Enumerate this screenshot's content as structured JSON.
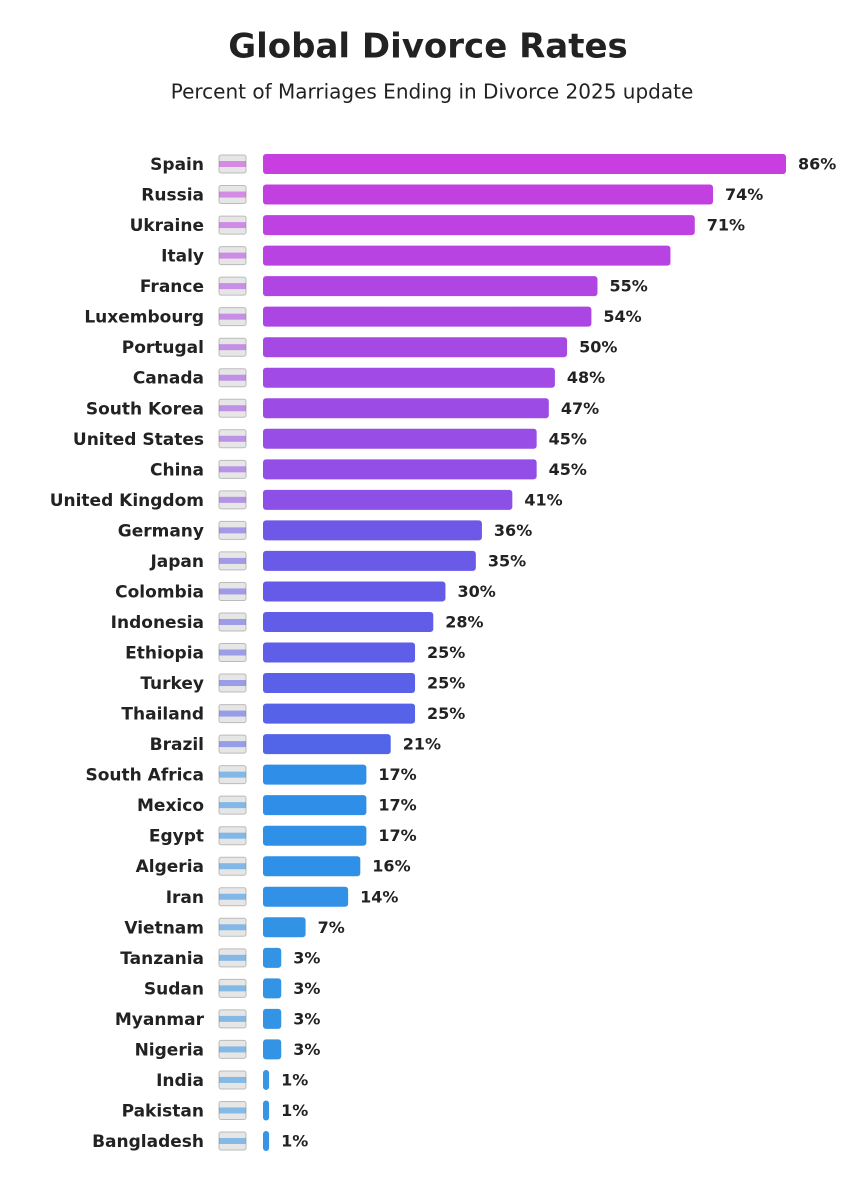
{
  "chart_data": {
    "type": "hbar",
    "title": "Global Divorce Rates",
    "subtitle": "Percent of Marriages Ending in Divorce 2025 update",
    "categories": [
      "Spain",
      "Russia",
      "Ukraine",
      "Italy",
      "France",
      "Luxembourg",
      "Portugal",
      "Canada",
      "South Korea",
      "United States",
      "China",
      "United Kingdom",
      "Germany",
      "Japan",
      "Colombia",
      "Indonesia",
      "Ethiopia",
      "Turkey",
      "Thailand",
      "Brazil",
      "South Africa",
      "Mexico",
      "Egypt",
      "Algeria",
      "Iran",
      "Vietnam",
      "Tanzania",
      "Sudan",
      "Myanmar",
      "Nigeria",
      "India",
      "Pakistan",
      "Bangladesh"
    ],
    "values": [
      86,
      74,
      71,
      67,
      55,
      54,
      50,
      48,
      47,
      45,
      45,
      41,
      36,
      35,
      30,
      28,
      25,
      25,
      25,
      21,
      17,
      17,
      17,
      16,
      14,
      7,
      3,
      3,
      3,
      3,
      1,
      1,
      1
    ],
    "value_labels": [
      "86%",
      "74%",
      "71%",
      null,
      "55%",
      "54%",
      "50%",
      "48%",
      "47%",
      "45%",
      "45%",
      "41%",
      "36%",
      "35%",
      "30%",
      "28%",
      "25%",
      "25%",
      "25%",
      "21%",
      "17%",
      "17%",
      "17%",
      "16%",
      "14%",
      "7%",
      "3%",
      "3%",
      "3%",
      "3%",
      "1%",
      "1%",
      "1%"
    ],
    "colors": [
      "#c83ee0",
      "#c340e0",
      "#be41e1",
      "#b943e2",
      "#b045e3",
      "#ab46e4",
      "#a648e4",
      "#a14ae5",
      "#9c4be5",
      "#974de6",
      "#924ee6",
      "#8d50e7",
      "#6e58e8",
      "#6a5ae8",
      "#665be8",
      "#625de8",
      "#5e5ee8",
      "#5a60e8",
      "#5662e8",
      "#5264e8",
      "#2f8fe8",
      "#2f8fe8",
      "#2f90e7",
      "#2f90e7",
      "#3091e7",
      "#3192e6",
      "#3394e6",
      "#3394e6",
      "#3394e6",
      "#3394e6",
      "#3596e6",
      "#3596e6",
      "#3596e6"
    ]
  }
}
